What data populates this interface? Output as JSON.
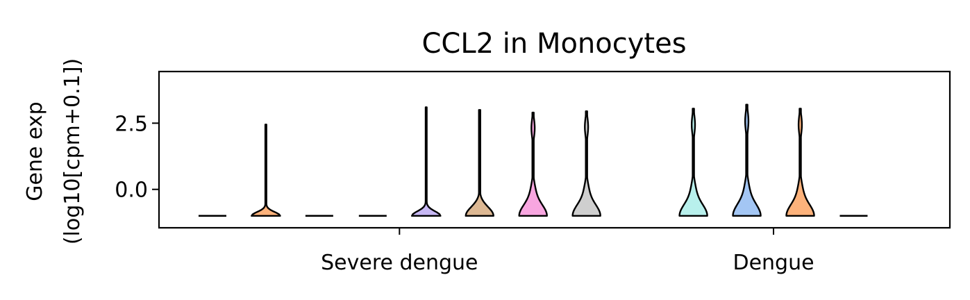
{
  "chart_data": {
    "type": "violin",
    "title": "CCL2 in Monocytes",
    "ylabel_line1": "Gene exp",
    "ylabel_line2": "(log10[cpm+0.1])",
    "xlabel": "",
    "ylim": [
      -1.45,
      4.45
    ],
    "y_ticks": [
      {
        "value": 2.5,
        "label": "2.5"
      },
      {
        "value": 0.0,
        "label": "0.0"
      }
    ],
    "groups": [
      {
        "label": "Severe dengue",
        "center": 4.5
      },
      {
        "label": "Dengue",
        "center": 11.5
      }
    ],
    "x_range": [
      0,
      14.8
    ],
    "violins": [
      {
        "x": 1,
        "color": "#ffffff",
        "min": -1.0,
        "max": -1.0,
        "shape": "flat"
      },
      {
        "x": 2,
        "color": "#fdb27b",
        "min": -1.0,
        "max": 2.45,
        "shape": "small"
      },
      {
        "x": 3,
        "color": "#ffffff",
        "min": -1.0,
        "max": -1.0,
        "shape": "flat"
      },
      {
        "x": 4,
        "color": "#ffffff",
        "min": -1.0,
        "max": -1.0,
        "shape": "flat"
      },
      {
        "x": 5,
        "color": "#c7b8f4",
        "min": -1.0,
        "max": 3.1,
        "shape": "small"
      },
      {
        "x": 6,
        "color": "#ddb893",
        "min": -1.0,
        "max": 3.0,
        "shape": "medium"
      },
      {
        "x": 7,
        "color": "#f8a6e0",
        "min": -1.0,
        "max": 2.9,
        "shape": "large"
      },
      {
        "x": 8,
        "color": "#cfcfcf",
        "min": -1.0,
        "max": 2.95,
        "shape": "large"
      },
      {
        "x": 10,
        "color": "#b8f0ec",
        "min": -1.0,
        "max": 3.05,
        "shape": "large"
      },
      {
        "x": 11,
        "color": "#a3c6f4",
        "min": -1.0,
        "max": 3.2,
        "shape": "large"
      },
      {
        "x": 12,
        "color": "#fdb27b",
        "min": -1.0,
        "max": 3.05,
        "shape": "large"
      },
      {
        "x": 13,
        "color": "#ffffff",
        "min": -1.0,
        "max": -1.0,
        "shape": "flat"
      }
    ],
    "grid": false,
    "legend": "none"
  }
}
